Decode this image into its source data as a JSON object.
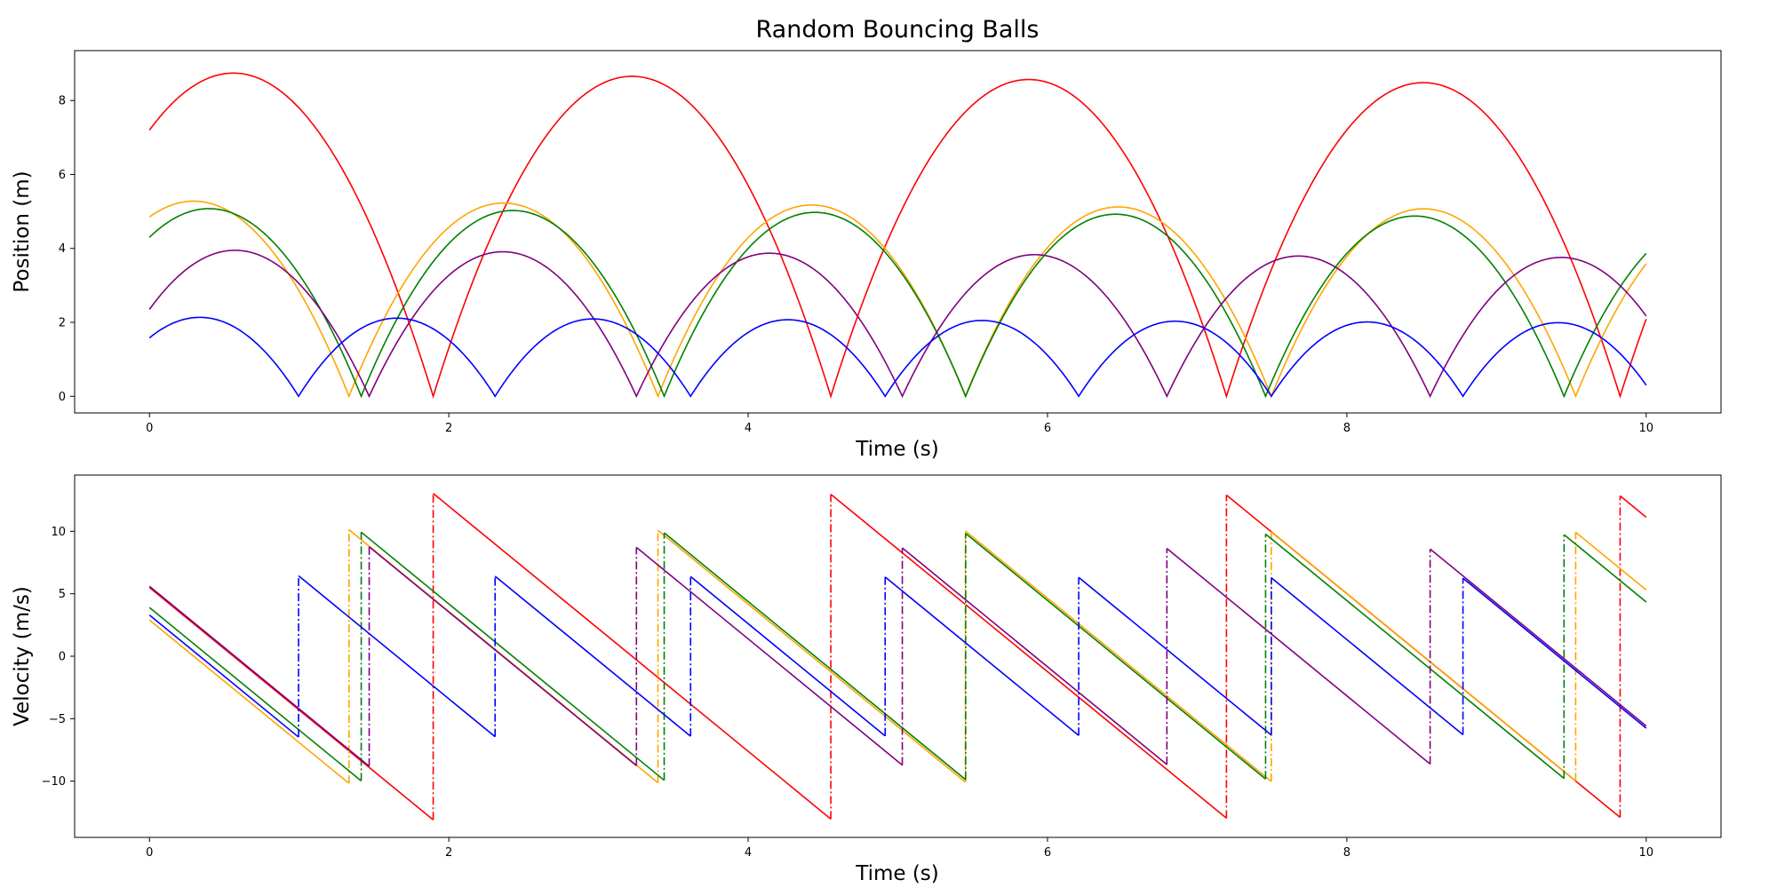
{
  "figure": {
    "title": "Random Bouncing Balls"
  },
  "chart_data": [
    {
      "type": "line",
      "title": "Random Bouncing Balls",
      "xlabel": "Time (s)",
      "ylabel": "Position (m)",
      "xlim": [
        -0.5,
        10.5
      ],
      "ylim": [
        -0.45,
        9.35
      ],
      "xticks": [
        0,
        2,
        4,
        6,
        8,
        10
      ],
      "yticks": [
        0,
        2,
        4,
        6,
        8
      ],
      "grid": false,
      "physics_model": {
        "gravity": 9.81,
        "restitution": 0.995,
        "t_max": 10
      },
      "series": [
        {
          "color": "#ff0000",
          "y0": 7.2,
          "v0": 5.5,
          "style": "solid"
        },
        {
          "color": "#ffa500",
          "y0": 4.85,
          "v0": 2.9,
          "style": "solid"
        },
        {
          "color": "#008000",
          "y0": 4.3,
          "v0": 3.9,
          "style": "solid"
        },
        {
          "color": "#800080",
          "y0": 2.35,
          "v0": 5.6,
          "style": "solid"
        },
        {
          "color": "#0000ff",
          "y0": 1.58,
          "v0": 3.3,
          "style": "solid"
        }
      ]
    },
    {
      "type": "line",
      "xlabel": "Time (s)",
      "ylabel": "Velocity (m/s)",
      "xlim": [
        -0.5,
        10.5
      ],
      "ylim": [
        -14.5,
        14.5
      ],
      "xticks": [
        0,
        2,
        4,
        6,
        8,
        10
      ],
      "yticks": [
        -10,
        -5,
        0,
        5,
        10
      ],
      "grid": false,
      "note": "Velocity series derived from the same physics model; jumps at bounces drawn dash-dot",
      "series": [
        {
          "color": "#ff0000",
          "style": "solid-with-dashdot-jumps"
        },
        {
          "color": "#ffa500",
          "style": "solid-with-dashdot-jumps"
        },
        {
          "color": "#008000",
          "style": "solid-with-dashdot-jumps"
        },
        {
          "color": "#800080",
          "style": "solid-with-dashdot-jumps"
        },
        {
          "color": "#0000ff",
          "style": "solid-with-dashdot-jumps"
        }
      ]
    }
  ]
}
